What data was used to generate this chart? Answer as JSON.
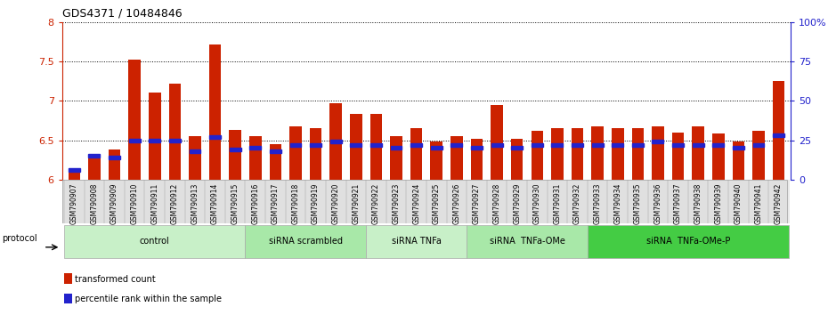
{
  "title": "GDS4371 / 10484846",
  "samples": [
    "GSM790907",
    "GSM790908",
    "GSM790909",
    "GSM790910",
    "GSM790911",
    "GSM790912",
    "GSM790913",
    "GSM790914",
    "GSM790915",
    "GSM790916",
    "GSM790917",
    "GSM790918",
    "GSM790919",
    "GSM790920",
    "GSM790921",
    "GSM790922",
    "GSM790923",
    "GSM790924",
    "GSM790925",
    "GSM790926",
    "GSM790927",
    "GSM790928",
    "GSM790929",
    "GSM790930",
    "GSM790931",
    "GSM790932",
    "GSM790933",
    "GSM790934",
    "GSM790935",
    "GSM790936",
    "GSM790937",
    "GSM790938",
    "GSM790939",
    "GSM790940",
    "GSM790941",
    "GSM790942"
  ],
  "transformed_count": [
    6.15,
    6.28,
    6.38,
    7.52,
    7.1,
    7.22,
    6.55,
    7.72,
    6.63,
    6.55,
    6.45,
    6.68,
    6.65,
    6.97,
    6.83,
    6.83,
    6.55,
    6.65,
    6.48,
    6.55,
    6.52,
    6.95,
    6.52,
    6.62,
    6.65,
    6.65,
    6.68,
    6.65,
    6.65,
    6.68,
    6.6,
    6.68,
    6.58,
    6.48,
    6.62,
    7.25
  ],
  "percentile_rank": [
    6,
    15,
    14,
    25,
    25,
    25,
    18,
    27,
    19,
    20,
    18,
    22,
    22,
    24,
    22,
    22,
    20,
    22,
    20,
    22,
    20,
    22,
    20,
    22,
    22,
    22,
    22,
    22,
    22,
    24,
    22,
    22,
    22,
    20,
    22,
    28
  ],
  "groups": [
    {
      "label": "control",
      "start": 0,
      "end": 8,
      "color": "#c8f0c8"
    },
    {
      "label": "siRNA scrambled",
      "start": 9,
      "end": 14,
      "color": "#a8e8a8"
    },
    {
      "label": "siRNA TNFa",
      "start": 15,
      "end": 19,
      "color": "#c8f0c8"
    },
    {
      "label": "siRNA  TNFa-OMe",
      "start": 20,
      "end": 25,
      "color": "#a8e8a8"
    },
    {
      "label": "siRNA  TNFa-OMe-P",
      "start": 26,
      "end": 35,
      "color": "#44cc44"
    }
  ],
  "ylim_left": [
    6.0,
    8.0
  ],
  "ylim_right": [
    0,
    100
  ],
  "yticks_left": [
    6.0,
    6.5,
    7.0,
    7.5,
    8.0
  ],
  "yticks_left_labels": [
    "6",
    "6.5",
    "7",
    "7.5",
    "8"
  ],
  "yticks_right": [
    0,
    25,
    50,
    75,
    100
  ],
  "yticks_right_labels": [
    "0",
    "25",
    "50",
    "75",
    "100%"
  ],
  "bar_color": "#cc2200",
  "percentile_color": "#2222cc",
  "bg_color": "#ffffff",
  "bar_width": 0.6,
  "legend_items": [
    {
      "label": "transformed count",
      "color": "#cc2200"
    },
    {
      "label": "percentile rank within the sample",
      "color": "#2222cc"
    }
  ]
}
